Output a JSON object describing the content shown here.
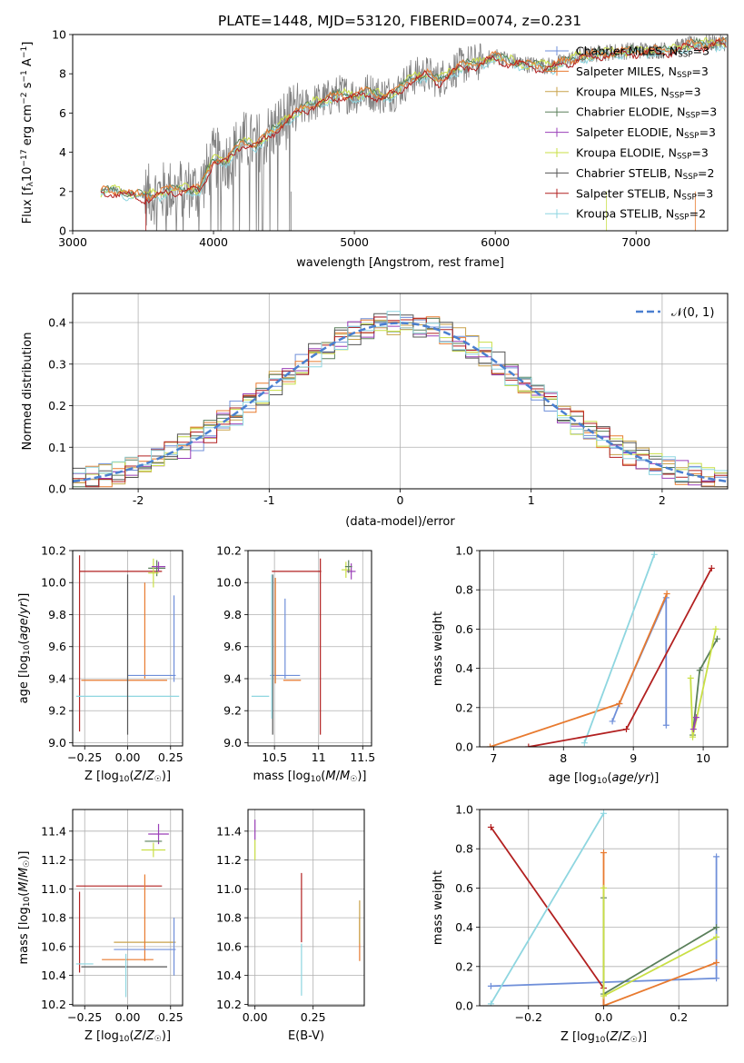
{
  "colors": {
    "Chabrier MILES": "#6f8fd9",
    "Salpeter MILES": "#e87a2f",
    "Kroupa MILES": "#c8a24a",
    "Chabrier ELODIE": "#5a7f5a",
    "Salpeter ELODIE": "#9a3fb8",
    "Kroupa ELODIE": "#c9df45",
    "Chabrier STELIB": "#555555",
    "Salpeter STELIB": "#b22020",
    "Kroupa STELIB": "#8ed6e0",
    "gauss": "#4a7fd0",
    "data": "#808080"
  },
  "chart_data": [
    {
      "id": "spectrum",
      "type": "line",
      "title": "PLATE=1448, MJD=53120, FIBERID=0074, z=0.231",
      "xlabel": "wavelength [Angstrom, rest frame]",
      "ylabel": "Flux [f_λ10^-17 erg cm^-2 s^-1 A^-1]",
      "xlim": [
        3000,
        7650
      ],
      "ylim": [
        0,
        10
      ],
      "xticks": [
        3000,
        4000,
        5000,
        6000,
        7000
      ],
      "yticks": [
        0,
        2,
        4,
        6,
        8,
        10
      ],
      "legend": [
        "Chabrier MILES, N_SSP=3",
        "Salpeter MILES, N_SSP=3",
        "Kroupa MILES, N_SSP=3",
        "Chabrier ELODIE, N_SSP=3",
        "Salpeter ELODIE, N_SSP=3",
        "Kroupa ELODIE, N_SSP=3",
        "Chabrier STELIB, N_SSP=2",
        "Salpeter STELIB, N_SSP=3",
        "Kroupa STELIB, N_SSP=2"
      ],
      "legend_loc": "right",
      "model_continuum": {
        "x": [
          3200,
          3300,
          3400,
          3500,
          3600,
          3700,
          3800,
          3900,
          4000,
          4100,
          4200,
          4300,
          4400,
          4500,
          4600,
          4700,
          4800,
          4900,
          5000,
          5100,
          5200,
          5300,
          5400,
          5500,
          5600,
          5700,
          5800,
          5900,
          6000,
          6200,
          6400,
          6600,
          6800,
          7000,
          7200,
          7400,
          7600
        ],
        "y": [
          2.0,
          2.1,
          1.9,
          1.8,
          1.9,
          2.1,
          2.2,
          2.1,
          3.7,
          3.6,
          4.6,
          4.4,
          5.0,
          5.6,
          6.1,
          6.5,
          6.7,
          7.0,
          6.9,
          7.1,
          6.9,
          7.1,
          7.8,
          8.0,
          7.7,
          8.2,
          8.5,
          8.6,
          8.9,
          8.5,
          8.4,
          8.9,
          9.1,
          9.2,
          9.2,
          9.5,
          9.6
        ]
      }
    },
    {
      "id": "residuals",
      "type": "line",
      "xlabel": "(data-model)/error",
      "ylabel": "Normed distribution",
      "xlim": [
        -2.5,
        2.5
      ],
      "ylim": [
        0,
        0.47
      ],
      "xticks": [
        -2,
        -1,
        0,
        1,
        2
      ],
      "yticks": [
        0.0,
        0.1,
        0.2,
        0.3,
        0.4
      ],
      "legend": [
        "𝒩(0, 1)"
      ],
      "legend_loc": "upper right",
      "hist_bins": [
        -2.5,
        -2.4,
        -2.3,
        -2.2,
        -2.1,
        -2.0,
        -1.9,
        -1.8,
        -1.7,
        -1.6,
        -1.5,
        -1.4,
        -1.3,
        -1.2,
        -1.1,
        -1.0,
        -0.9,
        -0.8,
        -0.7,
        -0.6,
        -0.5,
        -0.4,
        -0.3,
        -0.2,
        -0.1,
        0.0,
        0.1,
        0.2,
        0.3,
        0.4,
        0.5,
        0.6,
        0.7,
        0.8,
        0.9,
        1.0,
        1.1,
        1.2,
        1.3,
        1.4,
        1.5,
        1.6,
        1.7,
        1.8,
        1.9,
        2.0,
        2.1,
        2.2,
        2.3,
        2.4,
        2.5
      ]
    },
    {
      "id": "age-vs-Z",
      "type": "scatter",
      "xlabel": "Z [log10(Z/Z☉)]",
      "ylabel": "age  [log10(age/yr)]",
      "xlim": [
        -0.32,
        0.32
      ],
      "ylim": [
        8.98,
        10.2
      ],
      "xticks": [
        -0.25,
        0.0,
        0.25
      ],
      "xticklabels": [
        "−0.25",
        "0.00",
        "0.25"
      ],
      "yticks": [
        9.0,
        9.2,
        9.4,
        9.6,
        9.8,
        10.0,
        10.2
      ],
      "points": [
        {
          "model": "Salpeter STELIB",
          "x": -0.04,
          "xerr": 0.24,
          "y": 10.07,
          "yerr": 0.0
        },
        {
          "model": "Salpeter STELIB",
          "x": -0.28,
          "xerr": 0.0,
          "y": 9.62,
          "yerr": 0.55
        },
        {
          "model": "Salpeter MILES",
          "x": 0.1,
          "xerr": 0.0,
          "y": 9.7,
          "yerr": 0.3
        },
        {
          "model": "Salpeter MILES",
          "x": -0.02,
          "xerr": 0.25,
          "y": 9.39,
          "yerr": 0.0
        },
        {
          "model": "Chabrier MILES",
          "x": 0.27,
          "xerr": 0.0,
          "y": 9.65,
          "yerr": 0.27
        },
        {
          "model": "Chabrier MILES",
          "x": 0.14,
          "xerr": 0.14,
          "y": 9.42,
          "yerr": 0.0
        },
        {
          "model": "Kroupa STELIB",
          "x": 0.0,
          "xerr": 0.3,
          "y": 9.29,
          "yerr": 0.0
        },
        {
          "model": "Chabrier STELIB",
          "x": 0.0,
          "xerr": 0.0,
          "y": 9.55,
          "yerr": 0.5
        },
        {
          "model": "Chabrier ELODIE",
          "x": 0.17,
          "xerr": 0.05,
          "y": 10.09,
          "yerr": 0.05
        },
        {
          "model": "Kroupa ELODIE",
          "x": 0.15,
          "xerr": 0.03,
          "y": 10.06,
          "yerr": 0.09
        },
        {
          "model": "Salpeter ELODIE",
          "x": 0.18,
          "xerr": 0.04,
          "y": 10.1,
          "yerr": 0.03
        }
      ]
    },
    {
      "id": "age-vs-mass",
      "type": "scatter",
      "xlabel": "mass [log10(M/M☉)]",
      "ylabel": "",
      "xlim": [
        10.2,
        11.6
      ],
      "ylim": [
        8.98,
        10.2
      ],
      "xticks": [
        10.5,
        11.0,
        11.5
      ],
      "yticks": [
        9.0,
        9.2,
        9.4,
        9.6,
        9.8,
        10.0,
        10.2
      ],
      "points": [
        {
          "model": "Salpeter STELIB",
          "x": 10.75,
          "xerr": 0.28,
          "y": 10.07,
          "yerr": 0.0
        },
        {
          "model": "Salpeter STELIB",
          "x": 11.02,
          "xerr": 0.0,
          "y": 9.6,
          "yerr": 0.55
        },
        {
          "model": "Chabrier MILES",
          "x": 10.62,
          "xerr": 0.17,
          "y": 9.42,
          "yerr": 0.0
        },
        {
          "model": "Chabrier MILES",
          "x": 10.62,
          "xerr": 0.0,
          "y": 9.65,
          "yerr": 0.25
        },
        {
          "model": "Salpeter MILES",
          "x": 10.7,
          "xerr": 0.1,
          "y": 9.39,
          "yerr": 0.0
        },
        {
          "model": "Salpeter MILES",
          "x": 10.51,
          "xerr": 0.0,
          "y": 9.7,
          "yerr": 0.33
        },
        {
          "model": "Kroupa STELIB",
          "x": 10.34,
          "xerr": 0.1,
          "y": 9.29,
          "yerr": 0.0
        },
        {
          "model": "Chabrier STELIB",
          "x": 10.48,
          "xerr": 0.0,
          "y": 9.55,
          "yerr": 0.5
        },
        {
          "model": "Kroupa STELIB",
          "x": 10.47,
          "xerr": 0.0,
          "y": 9.6,
          "yerr": 0.45
        },
        {
          "model": "Salpeter ELODIE",
          "x": 11.37,
          "xerr": 0.05,
          "y": 10.07,
          "yerr": 0.05
        },
        {
          "model": "Kroupa ELODIE",
          "x": 11.31,
          "xerr": 0.05,
          "y": 10.08,
          "yerr": 0.05
        },
        {
          "model": "Chabrier ELODIE",
          "x": 11.34,
          "xerr": 0.04,
          "y": 10.1,
          "yerr": 0.04
        }
      ]
    },
    {
      "id": "massweight-vs-age",
      "type": "line",
      "xlabel": "age  [log10(age/yr)]",
      "ylabel": "mass weight",
      "xlim": [
        6.8,
        10.35
      ],
      "ylim": [
        0,
        1.0
      ],
      "xticks": [
        7,
        8,
        9,
        10
      ],
      "yticks": [
        0.0,
        0.2,
        0.4,
        0.6,
        0.8,
        1.0
      ],
      "series": [
        {
          "name": "Chabrier MILES",
          "x": [
            8.7,
            8.8,
            9.47,
            9.47
          ],
          "y": [
            0.13,
            0.22,
            0.76,
            0.11
          ]
        },
        {
          "name": "Salpeter MILES",
          "x": [
            6.95,
            8.8,
            9.48
          ],
          "y": [
            0.0,
            0.22,
            0.78
          ]
        },
        {
          "name": "Kroupa STELIB",
          "x": [
            8.3,
            9.3
          ],
          "y": [
            0.02,
            0.98
          ]
        },
        {
          "name": "Salpeter STELIB",
          "x": [
            7.5,
            8.9,
            10.12
          ],
          "y": [
            0.0,
            0.09,
            0.91
          ]
        },
        {
          "name": "Chabrier ELODIE",
          "x": [
            9.85,
            9.95,
            10.2
          ],
          "y": [
            0.06,
            0.39,
            0.55
          ]
        },
        {
          "name": "Kroupa ELODIE",
          "x": [
            9.82,
            9.85,
            10.18
          ],
          "y": [
            0.35,
            0.05,
            0.6
          ]
        },
        {
          "name": "Salpeter ELODIE",
          "x": [
            9.86,
            9.9
          ],
          "y": [
            0.09,
            0.15
          ]
        }
      ]
    },
    {
      "id": "mass-vs-Z",
      "type": "scatter",
      "xlabel": "Z [log10(Z/Z☉)]",
      "ylabel": "mass [log10(M/M☉)]",
      "xlim": [
        -0.32,
        0.32
      ],
      "ylim": [
        10.19,
        11.55
      ],
      "xticks": [
        -0.25,
        0.0,
        0.25
      ],
      "xticklabels": [
        "−0.25",
        "0.00",
        "0.25"
      ],
      "yticks": [
        10.2,
        10.4,
        10.6,
        10.8,
        11.0,
        11.2,
        11.4
      ],
      "points": [
        {
          "model": "Salpeter STELIB",
          "x": -0.05,
          "xerr": 0.25,
          "y": 11.02,
          "yerr": 0.0
        },
        {
          "model": "Salpeter STELIB",
          "x": -0.28,
          "xerr": 0.0,
          "y": 10.7,
          "yerr": 0.28
        },
        {
          "model": "Salpeter ELODIE",
          "x": 0.18,
          "xerr": 0.06,
          "y": 11.38,
          "yerr": 0.07
        },
        {
          "model": "Chabrier ELODIE",
          "x": 0.15,
          "xerr": 0.05,
          "y": 11.33,
          "yerr": 0.0
        },
        {
          "model": "Kroupa ELODIE",
          "x": 0.15,
          "xerr": 0.07,
          "y": 11.27,
          "yerr": 0.05
        },
        {
          "model": "Kroupa MILES",
          "x": 0.1,
          "xerr": 0.18,
          "y": 10.63,
          "yerr": 0.0
        },
        {
          "model": "Salpeter MILES",
          "x": 0.1,
          "xerr": 0.0,
          "y": 10.8,
          "yerr": 0.3
        },
        {
          "model": "Salpeter MILES",
          "x": 0.0,
          "xerr": 0.15,
          "y": 10.51,
          "yerr": 0.0
        },
        {
          "model": "Chabrier MILES",
          "x": 0.1,
          "xerr": 0.18,
          "y": 10.58,
          "yerr": 0.0
        },
        {
          "model": "Chabrier MILES",
          "x": 0.27,
          "xerr": 0.0,
          "y": 10.6,
          "yerr": 0.2
        },
        {
          "model": "Chabrier STELIB",
          "x": -0.02,
          "xerr": 0.25,
          "y": 10.46,
          "yerr": 0.0
        },
        {
          "model": "Kroupa STELIB",
          "x": -0.25,
          "xerr": 0.05,
          "y": 10.48,
          "yerr": 0.0
        },
        {
          "model": "Kroupa STELIB",
          "x": -0.01,
          "xerr": 0.0,
          "y": 10.4,
          "yerr": 0.15
        }
      ]
    },
    {
      "id": "mass-vs-EBV",
      "type": "scatter",
      "xlabel": "E(B-V)",
      "ylabel": "",
      "xlim": [
        -0.03,
        0.47
      ],
      "ylim": [
        10.19,
        11.55
      ],
      "xticks": [
        0.0,
        0.25
      ],
      "xticklabels": [
        "0.00",
        "0.25"
      ],
      "yticks": [
        10.2,
        10.4,
        10.6,
        10.8,
        11.0,
        11.2,
        11.4
      ],
      "points": [
        {
          "model": "Salpeter ELODIE",
          "x": 0.0,
          "xerr": 0.0,
          "y": 11.41,
          "yerr": 0.07
        },
        {
          "model": "Kroupa ELODIE",
          "x": 0.0,
          "xerr": 0.0,
          "y": 11.27,
          "yerr": 0.07
        },
        {
          "model": "Salpeter STELIB",
          "x": 0.2,
          "xerr": 0.0,
          "y": 10.87,
          "yerr": 0.24
        },
        {
          "model": "Kroupa STELIB",
          "x": 0.2,
          "xerr": 0.0,
          "y": 10.44,
          "yerr": 0.18
        },
        {
          "model": "Salpeter MILES",
          "x": 0.45,
          "xerr": 0.0,
          "y": 10.65,
          "yerr": 0.15
        },
        {
          "model": "Kroupa MILES",
          "x": 0.45,
          "xerr": 0.0,
          "y": 10.77,
          "yerr": 0.15
        }
      ]
    },
    {
      "id": "massweight-vs-Z",
      "type": "line",
      "xlabel": "Z [log10(Z/Z☉)]",
      "ylabel": "mass weight",
      "xlim": [
        -0.33,
        0.33
      ],
      "ylim": [
        0,
        1.0
      ],
      "xticks": [
        -0.2,
        0.0,
        0.2
      ],
      "xticklabels": [
        "−0.2",
        "0.0",
        "0.2"
      ],
      "yticks": [
        0.0,
        0.2,
        0.4,
        0.6,
        0.8,
        1.0
      ],
      "series": [
        {
          "name": "Chabrier MILES",
          "x": [
            -0.3,
            0.3,
            0.3
          ],
          "y": [
            0.1,
            0.14,
            0.76
          ]
        },
        {
          "name": "Salpeter STELIB",
          "x": [
            -0.3,
            0.0,
            0.0
          ],
          "y": [
            0.91,
            0.09,
            0.0
          ]
        },
        {
          "name": "Kroupa STELIB",
          "x": [
            -0.3,
            0.0
          ],
          "y": [
            0.01,
            0.98
          ]
        },
        {
          "name": "Salpeter MILES",
          "x": [
            0.0,
            0.0,
            0.3
          ],
          "y": [
            0.78,
            0.0,
            0.22
          ]
        },
        {
          "name": "Chabrier ELODIE",
          "x": [
            0.0,
            0.0,
            0.3
          ],
          "y": [
            0.55,
            0.06,
            0.4
          ]
        },
        {
          "name": "Kroupa ELODIE",
          "x": [
            0.0,
            0.0,
            0.3
          ],
          "y": [
            0.6,
            0.05,
            0.35
          ]
        }
      ]
    }
  ]
}
